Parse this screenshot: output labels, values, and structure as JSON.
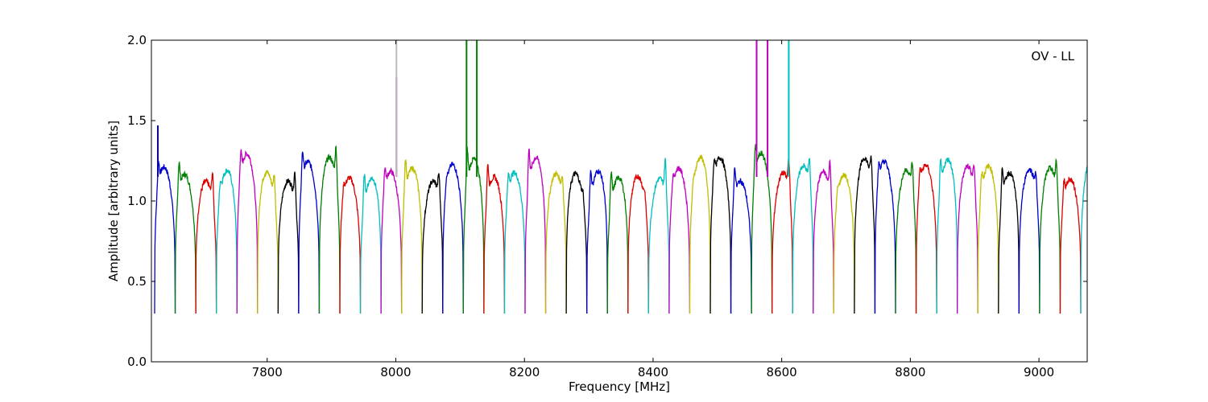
{
  "chart_data": {
    "type": "line",
    "title": "",
    "annotation": "OV - LL",
    "xlabel": "Frequency [MHz]",
    "ylabel": "Amplitude [arbitrary units]",
    "xlim": [
      7620,
      9075
    ],
    "ylim": [
      0.0,
      2.0
    ],
    "xticks": [
      7800,
      8000,
      8200,
      8400,
      8600,
      8800,
      9000
    ],
    "yticks": [
      0.0,
      0.5,
      1.0,
      1.5,
      2.0
    ],
    "xtick_labels": [
      "7800",
      "8000",
      "8200",
      "8400",
      "8600",
      "8800",
      "9000"
    ],
    "ytick_labels": [
      "0.0",
      "0.5",
      "1.0",
      "1.5",
      "2.0"
    ],
    "grid": false,
    "legend": "none",
    "channel_width_mhz": 32,
    "channel_colors": [
      "#0000cc",
      "#007f00",
      "#dd0000",
      "#00bfbf",
      "#bf00bf",
      "#bfbf00",
      "#000000"
    ],
    "band_start_mhz": 7625,
    "band_end_mhz": 9075,
    "channel_edge_level_approx": 0.3,
    "channel_passband_level_approx": 1.2,
    "spikes": [
      {
        "x": 7630,
        "ymax": 1.47,
        "color": "#0000cc"
      },
      {
        "x": 8001,
        "ymax": 1.77,
        "color": "#bf00bf"
      },
      {
        "x": 8001,
        "ymax": 2.0,
        "color": "#bbbbbb"
      },
      {
        "x": 8110,
        "ymax": 2.0,
        "color": "#007f00"
      },
      {
        "x": 8126,
        "ymax": 2.0,
        "color": "#007f00"
      },
      {
        "x": 8561,
        "ymax": 2.0,
        "color": "#bf00bf"
      },
      {
        "x": 8578,
        "ymax": 2.0,
        "color": "#bf00bf"
      },
      {
        "x": 8611,
        "ymax": 2.0,
        "color": "#00bfbf"
      }
    ]
  }
}
